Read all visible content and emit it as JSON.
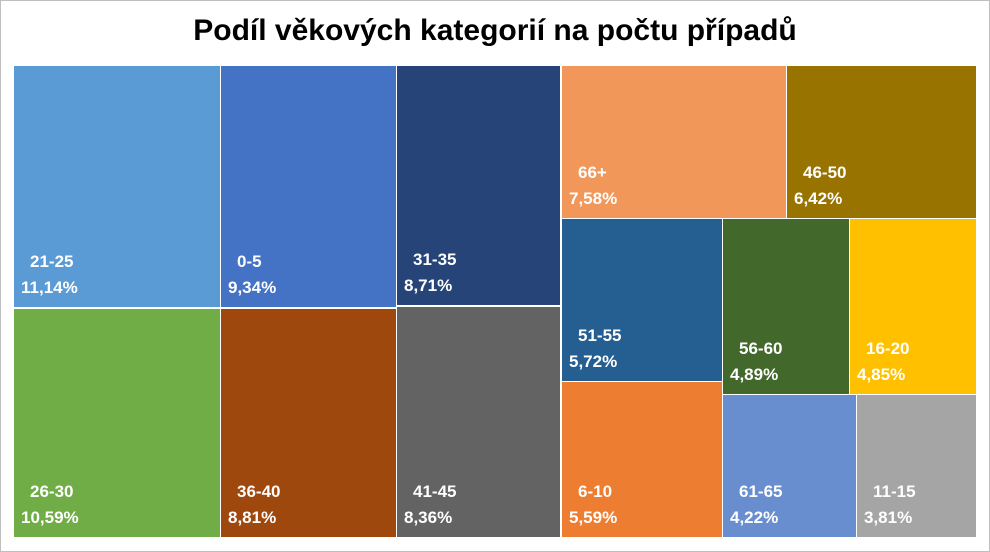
{
  "chart_data": {
    "type": "treemap",
    "title": "Podíl věkových kategorií na počtu případů",
    "unit": "%",
    "items": [
      {
        "name": "21-25",
        "value": 11.14,
        "display": "11,14%",
        "color": "#5B9BD5"
      },
      {
        "name": "26-30",
        "value": 10.59,
        "display": "10,59%",
        "color": "#70AD47"
      },
      {
        "name": "0-5",
        "value": 9.34,
        "display": "9,34%",
        "color": "#4472C4"
      },
      {
        "name": "36-40",
        "value": 8.81,
        "display": "8,81%",
        "color": "#9E480E"
      },
      {
        "name": "31-35",
        "value": 8.71,
        "display": "8,71%",
        "color": "#264478"
      },
      {
        "name": "41-45",
        "value": 8.36,
        "display": "8,36%",
        "color": "#636363"
      },
      {
        "name": "66+",
        "value": 7.58,
        "display": "7,58%",
        "color": "#F1975A"
      },
      {
        "name": "46-50",
        "value": 6.42,
        "display": "6,42%",
        "color": "#997300"
      },
      {
        "name": "51-55",
        "value": 5.72,
        "display": "5,72%",
        "color": "#255E91"
      },
      {
        "name": "6-10",
        "value": 5.59,
        "display": "5,59%",
        "color": "#ED7D31"
      },
      {
        "name": "56-60",
        "value": 4.89,
        "display": "4,89%",
        "color": "#43682B"
      },
      {
        "name": "16-20",
        "value": 4.85,
        "display": "4,85%",
        "color": "#FFC000"
      },
      {
        "name": "61-65",
        "value": 4.22,
        "display": "4,22%",
        "color": "#698ED0"
      },
      {
        "name": "11-15",
        "value": 3.81,
        "display": "3,81%",
        "color": "#A5A5A5"
      }
    ]
  }
}
